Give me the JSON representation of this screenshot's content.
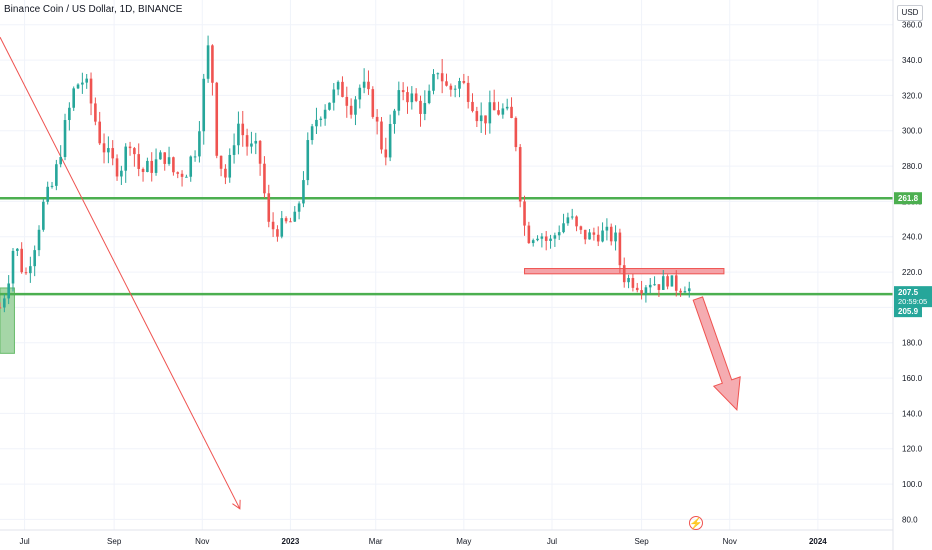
{
  "header": {
    "symbol_title": "Binance Coin / US Dollar, 1D, BINANCE",
    "currency": "USD"
  },
  "chart_data": {
    "type": "candlestick",
    "y_axis": {
      "ticks": [
        80.0,
        100.0,
        120.0,
        140.0,
        160.0,
        180.0,
        200.0,
        220.0,
        240.0,
        260.0,
        280.0,
        300.0,
        320.0,
        340.0,
        360.0
      ],
      "tick_labels": [
        "80.0",
        "100.0",
        "120.0",
        "140.0",
        "160.0",
        "180.0",
        "200.0",
        "220.0",
        "240.0",
        "260.0",
        "280.0",
        "300.0",
        "320.0",
        "340.0",
        "360.0"
      ],
      "ylim": [
        74,
        374
      ]
    },
    "x_axis": {
      "labels": [
        "Jul",
        "Sep",
        "Nov",
        "2023",
        "Mar",
        "May",
        "Jul",
        "Sep",
        "Nov",
        "2024"
      ],
      "xlim": [
        "2022-06-14",
        "2024-02-22"
      ]
    },
    "grid": true,
    "price_path": [
      [
        "2022-06-14",
        200
      ],
      [
        "2022-06-19",
        212
      ],
      [
        "2022-06-24",
        238
      ],
      [
        "2022-07-01",
        216
      ],
      [
        "2022-07-08",
        236
      ],
      [
        "2022-07-14",
        258
      ],
      [
        "2022-07-21",
        270
      ],
      [
        "2022-07-28",
        298
      ],
      [
        "2022-08-04",
        322
      ],
      [
        "2022-08-09",
        330
      ],
      [
        "2022-08-14",
        322
      ],
      [
        "2022-08-22",
        296
      ],
      [
        "2022-08-29",
        283
      ],
      [
        "2022-09-05",
        278
      ],
      [
        "2022-09-12",
        296
      ],
      [
        "2022-09-19",
        276
      ],
      [
        "2022-09-27",
        280
      ],
      [
        "2022-10-06",
        286
      ],
      [
        "2022-10-13",
        275
      ],
      [
        "2022-10-21",
        278
      ],
      [
        "2022-10-28",
        292
      ],
      [
        "2022-11-04",
        340
      ],
      [
        "2022-11-07",
        356
      ],
      [
        "2022-11-09",
        302
      ],
      [
        "2022-11-12",
        285
      ],
      [
        "2022-11-18",
        272
      ],
      [
        "2022-11-25",
        306
      ],
      [
        "2022-12-03",
        290
      ],
      [
        "2022-12-10",
        288
      ],
      [
        "2022-12-17",
        246
      ],
      [
        "2022-12-22",
        244
      ],
      [
        "2022-12-29",
        247
      ],
      [
        "2023-01-05",
        250
      ],
      [
        "2023-01-13",
        290
      ],
      [
        "2023-01-20",
        310
      ],
      [
        "2023-01-28",
        318
      ],
      [
        "2023-02-05",
        324
      ],
      [
        "2023-02-12",
        315
      ],
      [
        "2023-02-19",
        326
      ],
      [
        "2023-02-27",
        313
      ],
      [
        "2023-03-07",
        285
      ],
      [
        "2023-03-13",
        308
      ],
      [
        "2023-03-20",
        324
      ],
      [
        "2023-03-28",
        316
      ],
      [
        "2023-04-05",
        312
      ],
      [
        "2023-04-13",
        336
      ],
      [
        "2023-04-20",
        322
      ],
      [
        "2023-04-27",
        328
      ],
      [
        "2023-05-05",
        322
      ],
      [
        "2023-05-12",
        306
      ],
      [
        "2023-05-19",
        310
      ],
      [
        "2023-05-27",
        312
      ],
      [
        "2023-06-03",
        305
      ],
      [
        "2023-06-07",
        290
      ],
      [
        "2023-06-10",
        252
      ],
      [
        "2023-06-14",
        240
      ],
      [
        "2023-06-22",
        243
      ],
      [
        "2023-06-29",
        236
      ],
      [
        "2023-07-06",
        245
      ],
      [
        "2023-07-13",
        252
      ],
      [
        "2023-07-19",
        242
      ],
      [
        "2023-07-26",
        240
      ],
      [
        "2023-08-02",
        242
      ],
      [
        "2023-08-09",
        241
      ],
      [
        "2023-08-15",
        238
      ],
      [
        "2023-08-18",
        218
      ],
      [
        "2023-08-25",
        215
      ],
      [
        "2023-09-01",
        212
      ],
      [
        "2023-09-07",
        215
      ],
      [
        "2023-09-13",
        213
      ],
      [
        "2023-09-19",
        216
      ],
      [
        "2023-09-26",
        211
      ],
      [
        "2023-10-02",
        213
      ],
      [
        "2023-10-06",
        207.5
      ]
    ],
    "horizontal_levels": [
      {
        "value": 261.8,
        "label": "261.8",
        "color": "#4caf50"
      },
      {
        "value": 207.5,
        "label": "207.5",
        "color": "#4caf50"
      }
    ],
    "axis_markers": [
      {
        "value": 207.5,
        "label": "207.5",
        "sublabel": "20:59:05",
        "color": "#26a69a"
      },
      {
        "value": 205.9,
        "label": "205.9",
        "color": "#26a69a"
      }
    ],
    "support_zone": {
      "from": "2023-06-12",
      "to": "2023-10-28",
      "low": 219,
      "high": 222
    },
    "green_box": {
      "from": "2022-06-14",
      "to": "2022-06-24",
      "low": 174,
      "high": 211
    },
    "trend_line": {
      "from": [
        "2022-06-14",
        353
      ],
      "to": [
        "2022-11-27",
        86
      ]
    },
    "projection_arrow": {
      "from": [
        "2023-10-10",
        205
      ],
      "to": [
        "2023-11-06",
        142
      ]
    },
    "colors": {
      "up": "#26a69a",
      "down": "#ef5350",
      "level": "#4caf50",
      "trend": "#ef5350",
      "zone_fill": "#f4a3a8",
      "zone_stroke": "#ef5350",
      "box_fill": "#a5d6a7",
      "arrow_fill": "#f4a3a8",
      "grid": "#f0f3fa"
    }
  },
  "icons": {
    "watermark": "lightning-icon",
    "watermark_glyph": "⚡"
  }
}
